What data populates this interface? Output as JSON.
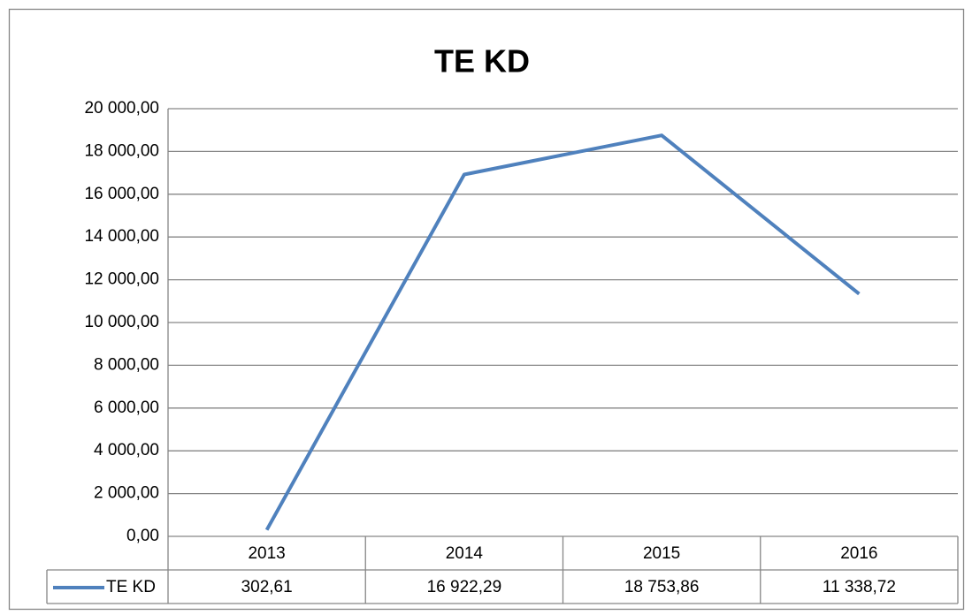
{
  "chart_data": {
    "type": "line",
    "title": "TE KD",
    "categories": [
      "2013",
      "2014",
      "2015",
      "2016"
    ],
    "series": [
      {
        "name": "TE KD",
        "color": "#4f81bd",
        "values": [
          302.61,
          16922.29,
          18753.86,
          11338.72
        ],
        "value_labels": [
          "302,61",
          "16 922,29",
          "18 753,86",
          "11 338,72"
        ]
      }
    ],
    "ylim": [
      0,
      20000
    ],
    "yticks": [
      {
        "value": 0,
        "label": "0,00"
      },
      {
        "value": 2000,
        "label": "2 000,00"
      },
      {
        "value": 4000,
        "label": "4 000,00"
      },
      {
        "value": 6000,
        "label": "6 000,00"
      },
      {
        "value": 8000,
        "label": "8 000,00"
      },
      {
        "value": 10000,
        "label": "10 000,00"
      },
      {
        "value": 12000,
        "label": "12 000,00"
      },
      {
        "value": 14000,
        "label": "14 000,00"
      },
      {
        "value": 16000,
        "label": "16 000,00"
      },
      {
        "value": 18000,
        "label": "18 000,00"
      },
      {
        "value": 20000,
        "label": "20 000,00"
      }
    ],
    "grid": true
  }
}
